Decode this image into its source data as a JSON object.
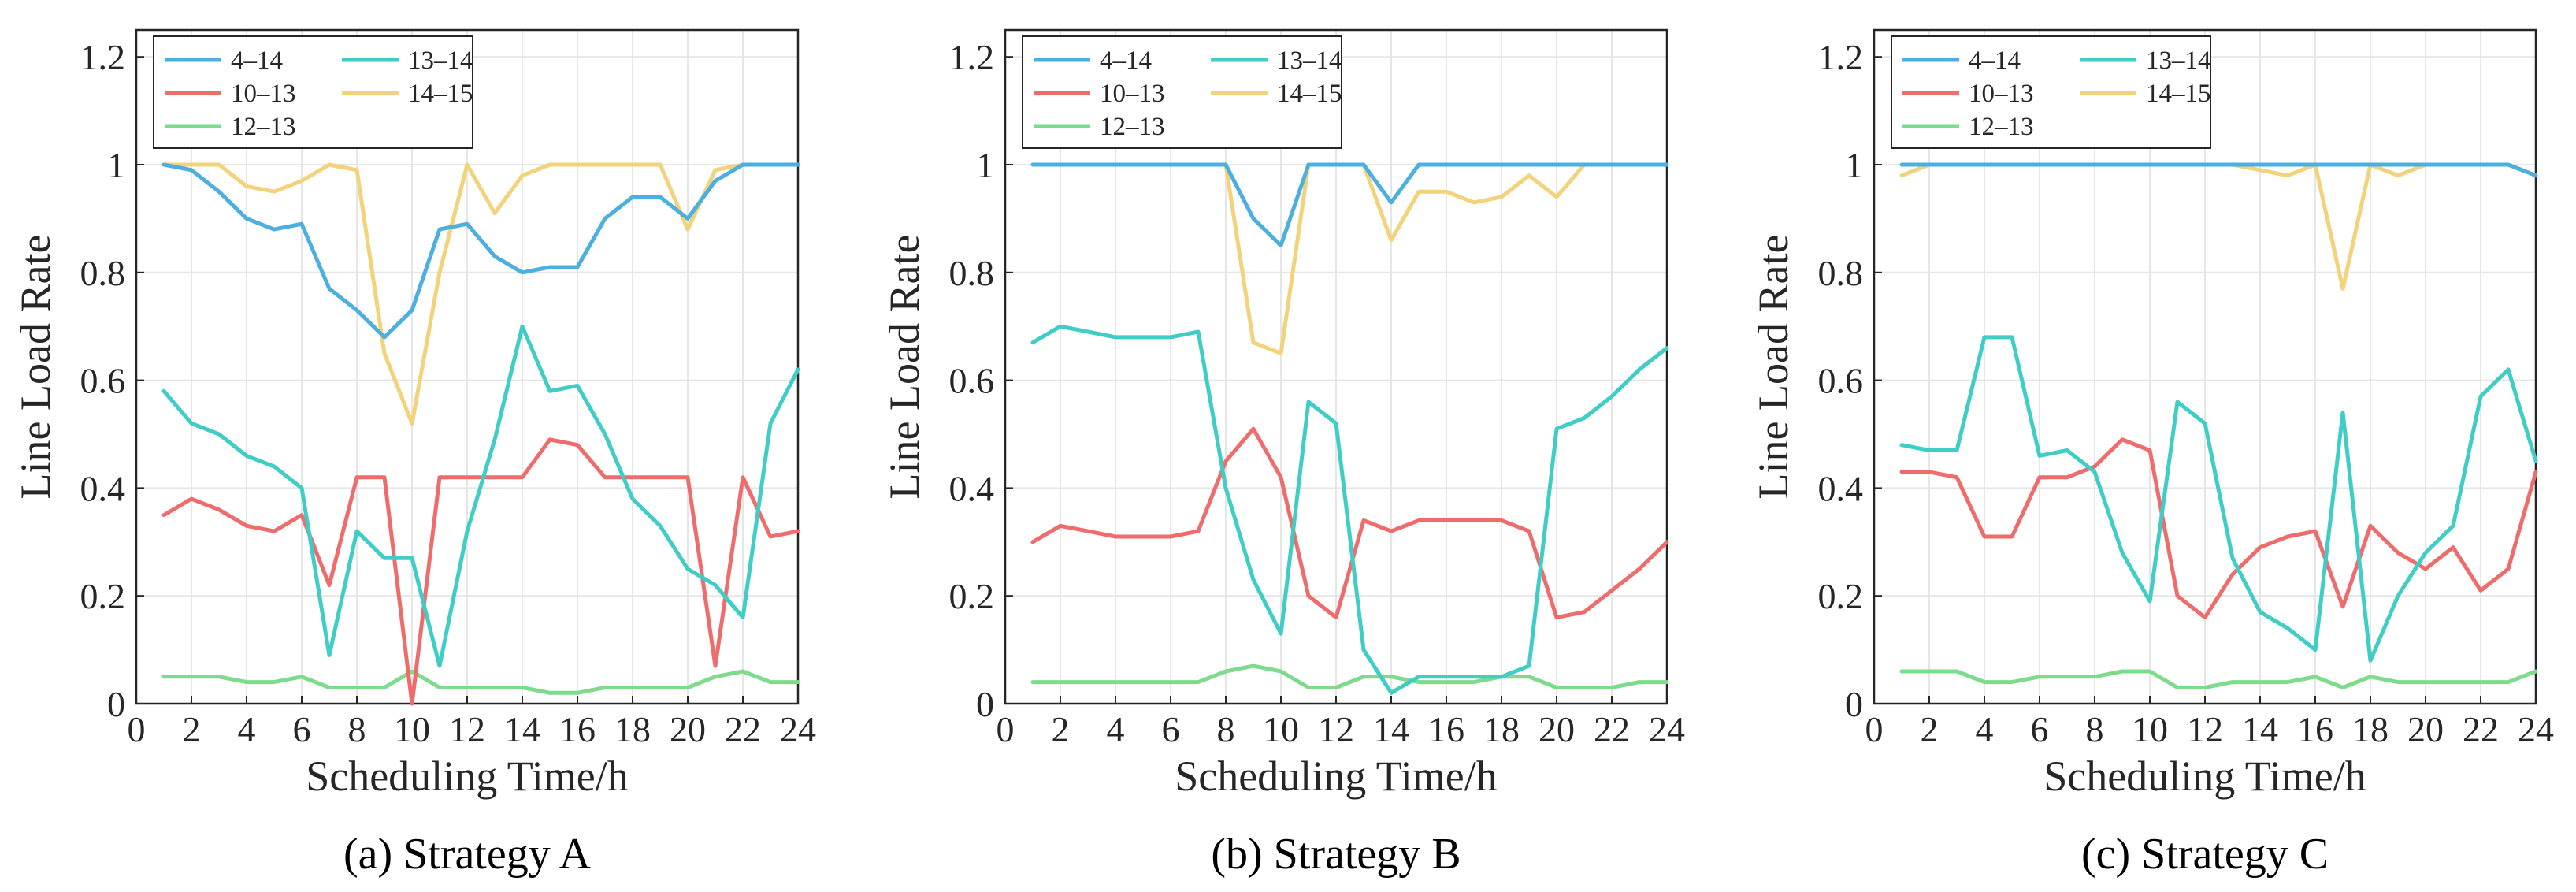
{
  "chart_data": [
    {
      "type": "line",
      "caption": "(a) Strategy A",
      "xlabel": "Scheduling Time/h",
      "ylabel": "Line Load Rate",
      "xlim": [
        0,
        24
      ],
      "ylim": [
        0,
        1.25
      ],
      "xticks": [
        0,
        2,
        4,
        6,
        8,
        10,
        12,
        14,
        16,
        18,
        20,
        22,
        24
      ],
      "yticks": [
        0,
        0.2,
        0.4,
        0.6,
        0.8,
        1,
        1.2
      ],
      "ytick_labels": [
        "0",
        "0.2",
        "0.4",
        "0.6",
        "0.8",
        "1",
        "1.2"
      ],
      "grid": true,
      "legend_position": "top-left",
      "x": [
        1,
        2,
        3,
        4,
        5,
        6,
        7,
        8,
        9,
        10,
        11,
        12,
        13,
        14,
        15,
        16,
        17,
        18,
        19,
        20,
        21,
        22,
        23,
        24
      ],
      "series": [
        {
          "name": "4–14",
          "color": "#4daee0",
          "values": [
            1.0,
            0.99,
            0.95,
            0.9,
            0.88,
            0.89,
            0.77,
            0.73,
            0.68,
            0.73,
            0.88,
            0.89,
            0.83,
            0.8,
            0.81,
            0.81,
            0.9,
            0.94,
            0.94,
            0.9,
            0.97,
            1.0,
            1.0,
            1.0
          ]
        },
        {
          "name": "13–14",
          "color": "#3fcdc6",
          "values": [
            0.58,
            0.52,
            0.5,
            0.46,
            0.44,
            0.4,
            0.09,
            0.32,
            0.27,
            0.27,
            0.07,
            0.32,
            0.49,
            0.7,
            0.58,
            0.59,
            0.5,
            0.38,
            0.33,
            0.25,
            0.22,
            0.16,
            0.52,
            0.62
          ]
        },
        {
          "name": "10–13",
          "color": "#ee6c6c",
          "values": [
            0.35,
            0.38,
            0.36,
            0.33,
            0.32,
            0.35,
            0.22,
            0.42,
            0.42,
            0.0,
            0.42,
            0.42,
            0.42,
            0.42,
            0.49,
            0.48,
            0.42,
            0.42,
            0.42,
            0.42,
            0.07,
            0.42,
            0.31,
            0.32
          ]
        },
        {
          "name": "14–15",
          "color": "#f2d27a",
          "values": [
            1.0,
            1.0,
            1.0,
            0.96,
            0.95,
            0.97,
            1.0,
            0.99,
            0.65,
            0.52,
            0.8,
            1.0,
            0.91,
            0.98,
            1.0,
            1.0,
            1.0,
            1.0,
            1.0,
            0.88,
            0.99,
            1.0,
            1.0,
            1.0
          ]
        },
        {
          "name": "12–13",
          "color": "#7fdb8c",
          "values": [
            0.05,
            0.05,
            0.05,
            0.04,
            0.04,
            0.05,
            0.03,
            0.03,
            0.03,
            0.06,
            0.03,
            0.03,
            0.03,
            0.03,
            0.02,
            0.02,
            0.03,
            0.03,
            0.03,
            0.03,
            0.05,
            0.06,
            0.04,
            0.04
          ]
        }
      ]
    },
    {
      "type": "line",
      "caption": "(b) Strategy B",
      "xlabel": "Scheduling Time/h",
      "ylabel": "Line Load Rate",
      "xlim": [
        0,
        24
      ],
      "ylim": [
        0,
        1.25
      ],
      "xticks": [
        0,
        2,
        4,
        6,
        8,
        10,
        12,
        14,
        16,
        18,
        20,
        22,
        24
      ],
      "yticks": [
        0,
        0.2,
        0.4,
        0.6,
        0.8,
        1,
        1.2
      ],
      "ytick_labels": [
        "0",
        "0.2",
        "0.4",
        "0.6",
        "0.8",
        "1",
        "1.2"
      ],
      "grid": true,
      "legend_position": "top-left",
      "x": [
        1,
        2,
        3,
        4,
        5,
        6,
        7,
        8,
        9,
        10,
        11,
        12,
        13,
        14,
        15,
        16,
        17,
        18,
        19,
        20,
        21,
        22,
        23,
        24
      ],
      "series": [
        {
          "name": "4–14",
          "color": "#4daee0",
          "values": [
            1.0,
            1.0,
            1.0,
            1.0,
            1.0,
            1.0,
            1.0,
            1.0,
            0.9,
            0.85,
            1.0,
            1.0,
            1.0,
            0.93,
            1.0,
            1.0,
            1.0,
            1.0,
            1.0,
            1.0,
            1.0,
            1.0,
            1.0,
            1.0
          ]
        },
        {
          "name": "13–14",
          "color": "#3fcdc6",
          "values": [
            0.67,
            0.7,
            0.69,
            0.68,
            0.68,
            0.68,
            0.69,
            0.4,
            0.23,
            0.13,
            0.56,
            0.52,
            0.1,
            0.02,
            0.05,
            0.05,
            0.05,
            0.05,
            0.07,
            0.51,
            0.53,
            0.57,
            0.62,
            0.66
          ]
        },
        {
          "name": "10–13",
          "color": "#ee6c6c",
          "values": [
            0.3,
            0.33,
            0.32,
            0.31,
            0.31,
            0.31,
            0.32,
            0.45,
            0.51,
            0.42,
            0.2,
            0.16,
            0.34,
            0.32,
            0.34,
            0.34,
            0.34,
            0.34,
            0.32,
            0.16,
            0.17,
            0.21,
            0.25,
            0.3
          ]
        },
        {
          "name": "14–15",
          "color": "#f2d27a",
          "values": [
            1.0,
            1.0,
            1.0,
            1.0,
            1.0,
            1.0,
            1.0,
            1.0,
            0.67,
            0.65,
            1.0,
            1.0,
            1.0,
            0.86,
            0.95,
            0.95,
            0.93,
            0.94,
            0.98,
            0.94,
            1.0,
            1.0,
            1.0,
            1.0
          ]
        },
        {
          "name": "12–13",
          "color": "#7fdb8c",
          "values": [
            0.04,
            0.04,
            0.04,
            0.04,
            0.04,
            0.04,
            0.04,
            0.06,
            0.07,
            0.06,
            0.03,
            0.03,
            0.05,
            0.05,
            0.04,
            0.04,
            0.04,
            0.05,
            0.05,
            0.03,
            0.03,
            0.03,
            0.04,
            0.04
          ]
        }
      ]
    },
    {
      "type": "line",
      "caption": "(c) Strategy C",
      "xlabel": "Scheduling Time/h",
      "ylabel": "Line Load Rate",
      "xlim": [
        0,
        24
      ],
      "ylim": [
        0,
        1.25
      ],
      "xticks": [
        0,
        2,
        4,
        6,
        8,
        10,
        12,
        14,
        16,
        18,
        20,
        22,
        24
      ],
      "yticks": [
        0,
        0.2,
        0.4,
        0.6,
        0.8,
        1,
        1.2
      ],
      "ytick_labels": [
        "0",
        "0.2",
        "0.4",
        "0.6",
        "0.8",
        "1",
        "1.2"
      ],
      "grid": true,
      "legend_position": "top-left",
      "x": [
        1,
        2,
        3,
        4,
        5,
        6,
        7,
        8,
        9,
        10,
        11,
        12,
        13,
        14,
        15,
        16,
        17,
        18,
        19,
        20,
        21,
        22,
        23,
        24
      ],
      "series": [
        {
          "name": "4–14",
          "color": "#4daee0",
          "values": [
            1.0,
            1.0,
            1.0,
            1.0,
            1.0,
            1.0,
            1.0,
            1.0,
            1.0,
            1.0,
            1.0,
            1.0,
            1.0,
            1.0,
            1.0,
            1.0,
            1.0,
            1.0,
            1.0,
            1.0,
            1.0,
            1.0,
            1.0,
            0.98
          ]
        },
        {
          "name": "13–14",
          "color": "#3fcdc6",
          "values": [
            0.48,
            0.47,
            0.47,
            0.68,
            0.68,
            0.46,
            0.47,
            0.43,
            0.28,
            0.19,
            0.56,
            0.52,
            0.27,
            0.17,
            0.14,
            0.1,
            0.54,
            0.08,
            0.2,
            0.28,
            0.33,
            0.57,
            0.62,
            0.45
          ]
        },
        {
          "name": "10–13",
          "color": "#ee6c6c",
          "values": [
            0.43,
            0.43,
            0.42,
            0.31,
            0.31,
            0.42,
            0.42,
            0.44,
            0.49,
            0.47,
            0.2,
            0.16,
            0.24,
            0.29,
            0.31,
            0.32,
            0.18,
            0.33,
            0.28,
            0.25,
            0.29,
            0.21,
            0.25,
            0.43
          ]
        },
        {
          "name": "14–15",
          "color": "#f2d27a",
          "values": [
            0.98,
            1.0,
            1.0,
            1.0,
            1.0,
            1.0,
            1.0,
            1.0,
            1.0,
            1.0,
            1.0,
            1.0,
            1.0,
            0.99,
            0.98,
            1.0,
            0.77,
            1.0,
            0.98,
            1.0,
            1.0,
            1.0,
            1.0,
            0.98
          ]
        },
        {
          "name": "12–13",
          "color": "#7fdb8c",
          "values": [
            0.06,
            0.06,
            0.06,
            0.04,
            0.04,
            0.05,
            0.05,
            0.05,
            0.06,
            0.06,
            0.03,
            0.03,
            0.04,
            0.04,
            0.04,
            0.05,
            0.03,
            0.05,
            0.04,
            0.04,
            0.04,
            0.04,
            0.04,
            0.06
          ]
        }
      ]
    }
  ]
}
